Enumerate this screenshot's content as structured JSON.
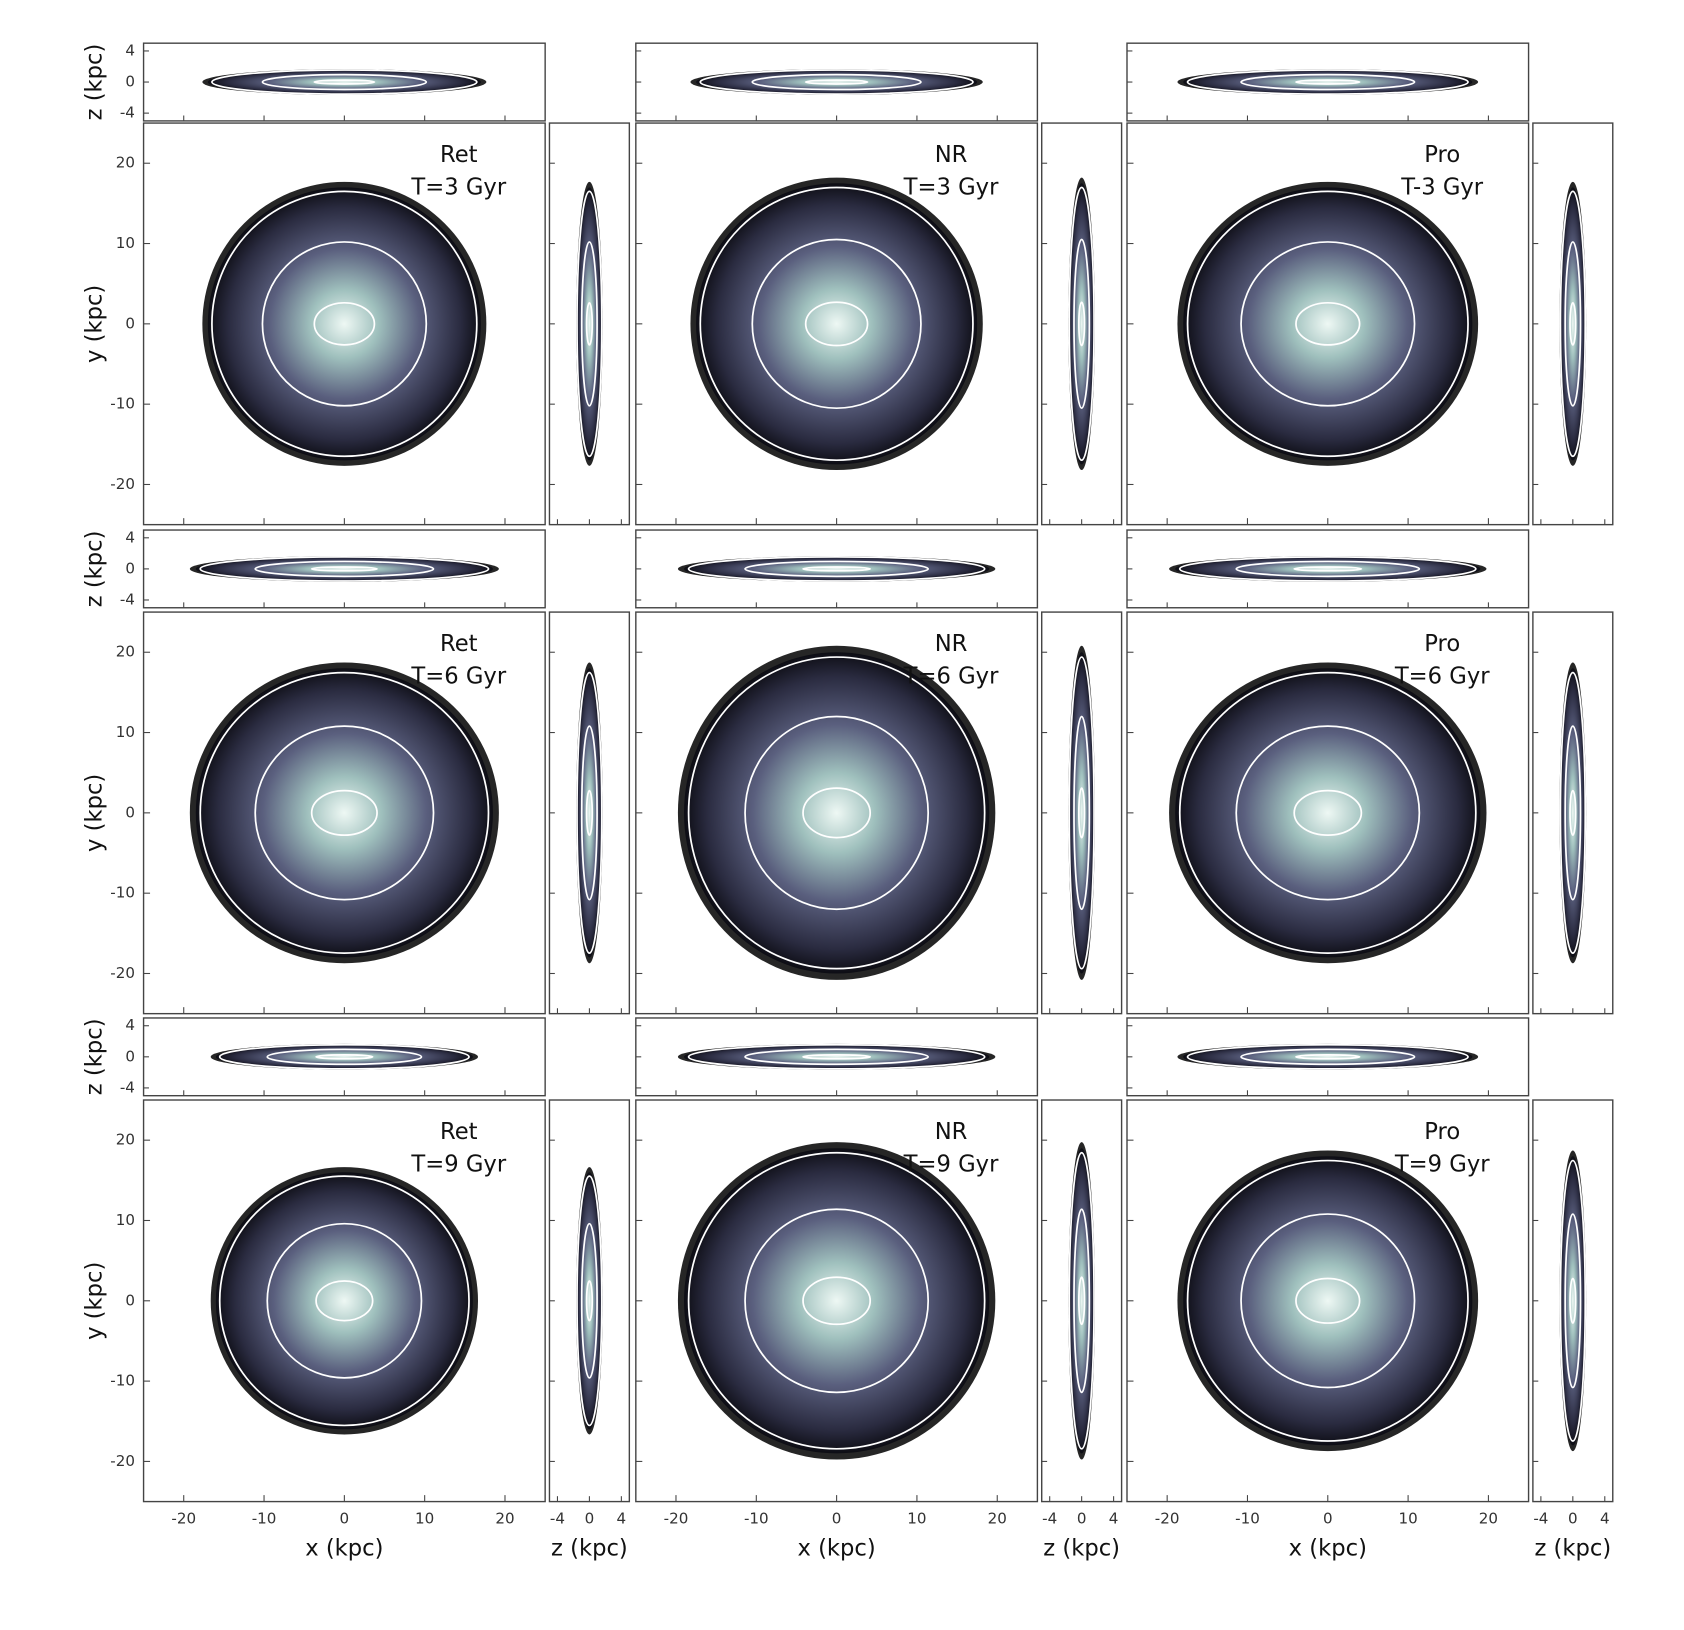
{
  "figure": {
    "x_label": "x (kpc)",
    "y_label": "y (kpc)",
    "z_label": "z (kpc)",
    "xlim": [
      -25,
      25
    ],
    "ylim": [
      -25,
      25
    ],
    "zlim": [
      -5,
      5
    ],
    "xticks": [
      -20,
      -10,
      0,
      10,
      20
    ],
    "yticks": [
      -20,
      -10,
      0,
      10,
      20
    ],
    "zticks": [
      -4,
      0,
      4
    ],
    "panels": [
      {
        "model": "Ret",
        "time": "T=3 Gyr"
      },
      {
        "model": "NR",
        "time": "T=3 Gyr"
      },
      {
        "model": "Pro",
        "time": "T-3 Gyr"
      },
      {
        "model": "Ret",
        "time": "T=6 Gyr"
      },
      {
        "model": "NR",
        "time": "T=6 Gyr"
      },
      {
        "model": "Pro",
        "time": "T=6 Gyr"
      },
      {
        "model": "Ret",
        "time": "T=9 Gyr"
      },
      {
        "model": "NR",
        "time": "T=9 Gyr"
      },
      {
        "model": "Pro",
        "time": "T=9 Gyr"
      }
    ]
  }
}
